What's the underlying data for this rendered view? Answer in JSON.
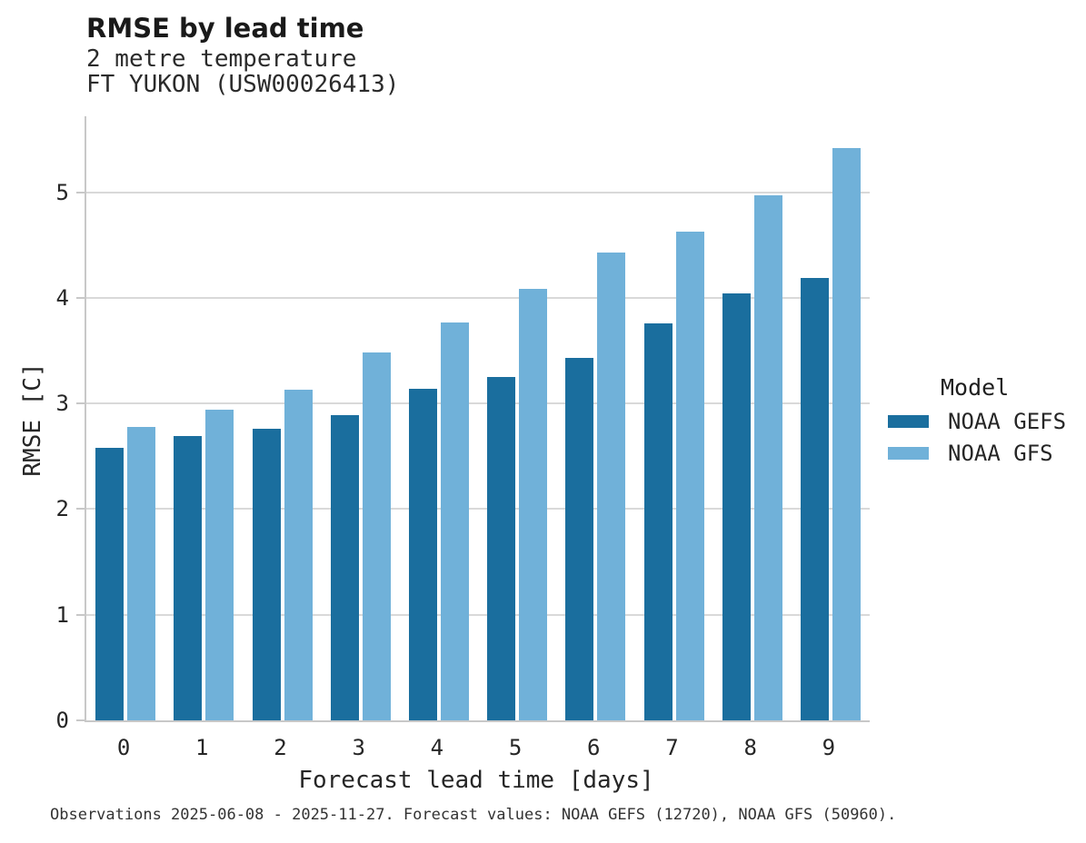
{
  "header": {
    "title": "RMSE by lead time",
    "subtitle1": "2 metre temperature",
    "subtitle2": "FT YUKON (USW00026413)"
  },
  "chart_data": {
    "type": "bar",
    "title": "RMSE by lead time",
    "subtitle": [
      "2 metre temperature",
      "FT YUKON (USW00026413)"
    ],
    "categories": [
      "0",
      "1",
      "2",
      "3",
      "4",
      "5",
      "6",
      "7",
      "8",
      "9"
    ],
    "series": [
      {
        "name": "NOAA GEFS",
        "color": "#1a6e9e",
        "values": [
          2.58,
          2.69,
          2.76,
          2.89,
          3.14,
          3.25,
          3.43,
          3.76,
          4.04,
          4.19
        ]
      },
      {
        "name": "NOAA GFS",
        "color": "#70b1d9",
        "values": [
          2.78,
          2.94,
          3.13,
          3.48,
          3.77,
          4.09,
          4.43,
          4.63,
          4.97,
          5.42
        ]
      }
    ],
    "xlabel": "Forecast lead time [days]",
    "ylabel": "RMSE [C]",
    "ylim": [
      0,
      5.72
    ],
    "yticks": [
      0,
      1,
      2,
      3,
      4,
      5
    ],
    "grid": true,
    "legend_title": "Model",
    "legend_position": "right"
  },
  "colors": {
    "gridline": "#d9d9d9",
    "spine": "#c8c8c8",
    "text": "#262626"
  },
  "footer": {
    "caption": "Observations 2025-06-08 - 2025-11-27. Forecast values: NOAA GEFS (12720), NOAA GFS (50960)."
  }
}
